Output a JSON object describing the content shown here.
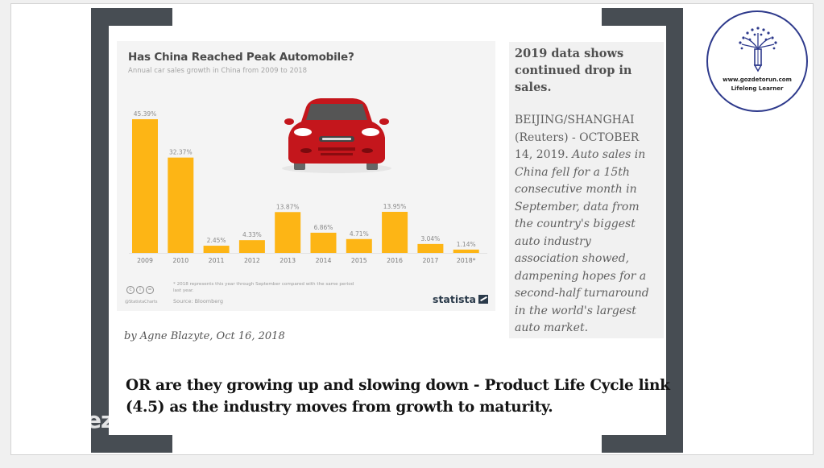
{
  "slide": {
    "watermark": "ezi",
    "byline": "by Agne Blazyte, Oct 16, 2018",
    "main_text": "OR are they growing up and slowing down - Product Life Cycle link (4.5) as the industry moves from growth to maturity."
  },
  "logo": {
    "url": "www.gozdetorun.com",
    "tagline": "Lifelong Learner",
    "icon": "pencil-tree-icon",
    "color": "#2e3a8c"
  },
  "news": {
    "headline": "2019 data shows continued drop in sales.",
    "dateline": "BEIJING/SHANGHAI (Reuters) - OCTOBER 14, 2019.",
    "body": "Auto sales in China fell for a 15th consecutive month in September, data from the country's biggest auto industry association showed, dampening hopes for a second-half turnaround in the world's largest auto market."
  },
  "infographic": {
    "footnote": "* 2018 represents this year through September compared with the same period last year.",
    "source": "Source: Bloomberg",
    "handle": "@StatistaCharts",
    "brand": "statista",
    "license_icons": [
      "cc-icon",
      "by-icon",
      "nd-icon"
    ],
    "illustration": "red-car-icon"
  },
  "chart_data": {
    "type": "bar",
    "title": "Has China Reached Peak Automobile?",
    "subtitle": "Annual car sales growth in China from 2009 to 2018",
    "categories": [
      "2009",
      "2010",
      "2011",
      "2012",
      "2013",
      "2014",
      "2015",
      "2016",
      "2017",
      "2018*"
    ],
    "values": [
      45.39,
      32.37,
      2.45,
      4.33,
      13.87,
      6.86,
      4.71,
      13.95,
      3.04,
      1.14
    ],
    "labels": [
      "45.39%",
      "32.37%",
      "2.45%",
      "4.33%",
      "13.87%",
      "6.86%",
      "4.71%",
      "13.95%",
      "3.04%",
      "1.14%"
    ],
    "xlabel": "",
    "ylabel": "",
    "ylim": [
      0,
      50
    ],
    "grid": false,
    "bar_color": "#fdb515",
    "unit": "%"
  }
}
